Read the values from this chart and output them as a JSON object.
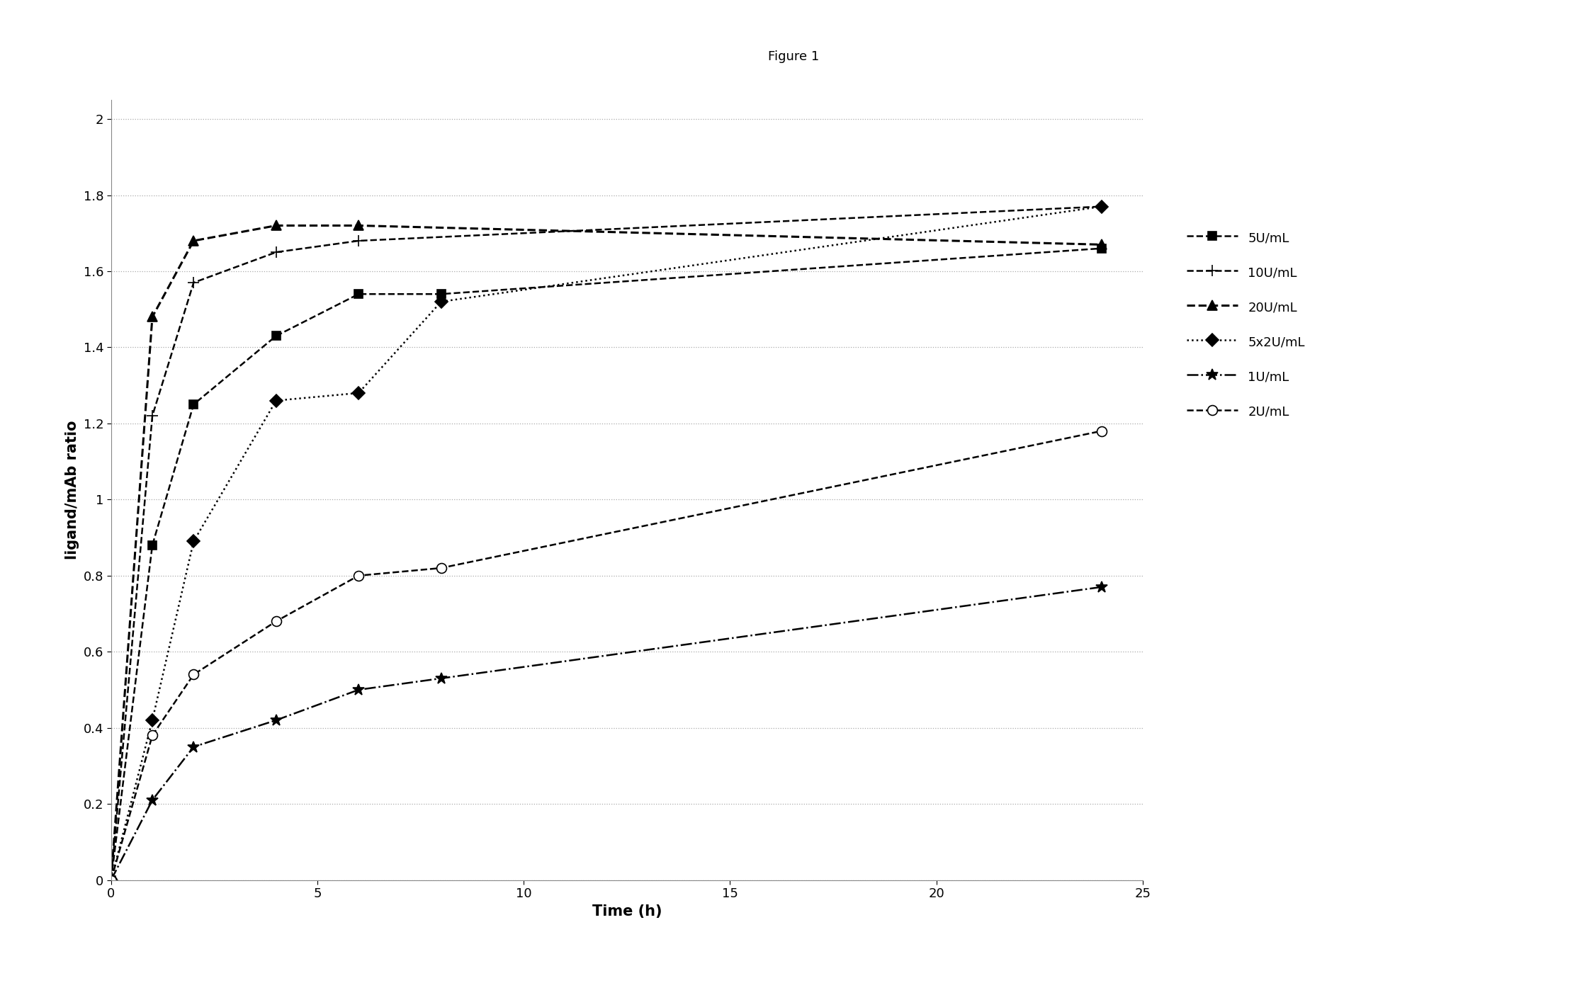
{
  "title": "Figure 1",
  "xlabel": "Time (h)",
  "ylabel": "ligand/mAb ratio",
  "xlim": [
    0,
    25
  ],
  "ylim": [
    0,
    2.05
  ],
  "yticks": [
    0,
    0.2,
    0.4,
    0.6,
    0.8,
    1.0,
    1.2,
    1.4,
    1.6,
    1.8,
    2.0
  ],
  "ytick_labels": [
    "0",
    "0.2",
    "0.4",
    "0.6",
    "0.8",
    "1",
    "1.2",
    "1.4",
    "1.6",
    "1.8",
    "2"
  ],
  "xticks": [
    0,
    5,
    10,
    15,
    20,
    25
  ],
  "series_order": [
    "5U/mL",
    "10U/mL",
    "20U/mL",
    "5x2U/mL",
    "1U/mL",
    "2U/mL"
  ],
  "series": {
    "5U/mL": {
      "x": [
        0,
        1,
        2,
        4,
        6,
        8,
        24
      ],
      "y": [
        0,
        0.88,
        1.25,
        1.43,
        1.54,
        1.54,
        1.66
      ],
      "linestyle": "--",
      "marker": "s",
      "color": "#000000",
      "linewidth": 1.8,
      "markersize": 9,
      "markerfacecolor": "#000000"
    },
    "10U/mL": {
      "x": [
        0,
        1,
        2,
        4,
        6,
        24
      ],
      "y": [
        0,
        1.22,
        1.57,
        1.65,
        1.68,
        1.77
      ],
      "linestyle": "--",
      "marker": "+",
      "color": "#000000",
      "linewidth": 1.8,
      "markersize": 12,
      "markerfacecolor": "#000000"
    },
    "20U/mL": {
      "x": [
        0,
        1,
        2,
        4,
        6,
        24
      ],
      "y": [
        0,
        1.48,
        1.68,
        1.72,
        1.72,
        1.67
      ],
      "linestyle": "--",
      "marker": "^",
      "color": "#000000",
      "linewidth": 2.2,
      "markersize": 10,
      "markerfacecolor": "#000000"
    },
    "5x2U/mL": {
      "x": [
        0,
        1,
        2,
        4,
        6,
        8,
        24
      ],
      "y": [
        0,
        0.42,
        0.89,
        1.26,
        1.28,
        1.52,
        1.77
      ],
      "linestyle": ":",
      "marker": "D",
      "color": "#000000",
      "linewidth": 1.8,
      "markersize": 9,
      "markerfacecolor": "#000000"
    },
    "1U/mL": {
      "x": [
        0,
        1,
        2,
        4,
        6,
        8,
        24
      ],
      "y": [
        0,
        0.21,
        0.35,
        0.42,
        0.5,
        0.53,
        0.77
      ],
      "linestyle": "-.",
      "marker": "*",
      "color": "#000000",
      "linewidth": 1.8,
      "markersize": 12,
      "markerfacecolor": "#000000"
    },
    "2U/mL": {
      "x": [
        0,
        1,
        2,
        4,
        6,
        8,
        24
      ],
      "y": [
        0,
        0.38,
        0.54,
        0.68,
        0.8,
        0.82,
        1.18
      ],
      "linestyle": "--",
      "marker": "o",
      "color": "#000000",
      "linewidth": 1.8,
      "markersize": 10,
      "markerfacecolor": "white"
    }
  },
  "background_color": "#ffffff",
  "title_fontsize": 13,
  "label_fontsize": 15,
  "tick_fontsize": 13,
  "legend_fontsize": 13
}
